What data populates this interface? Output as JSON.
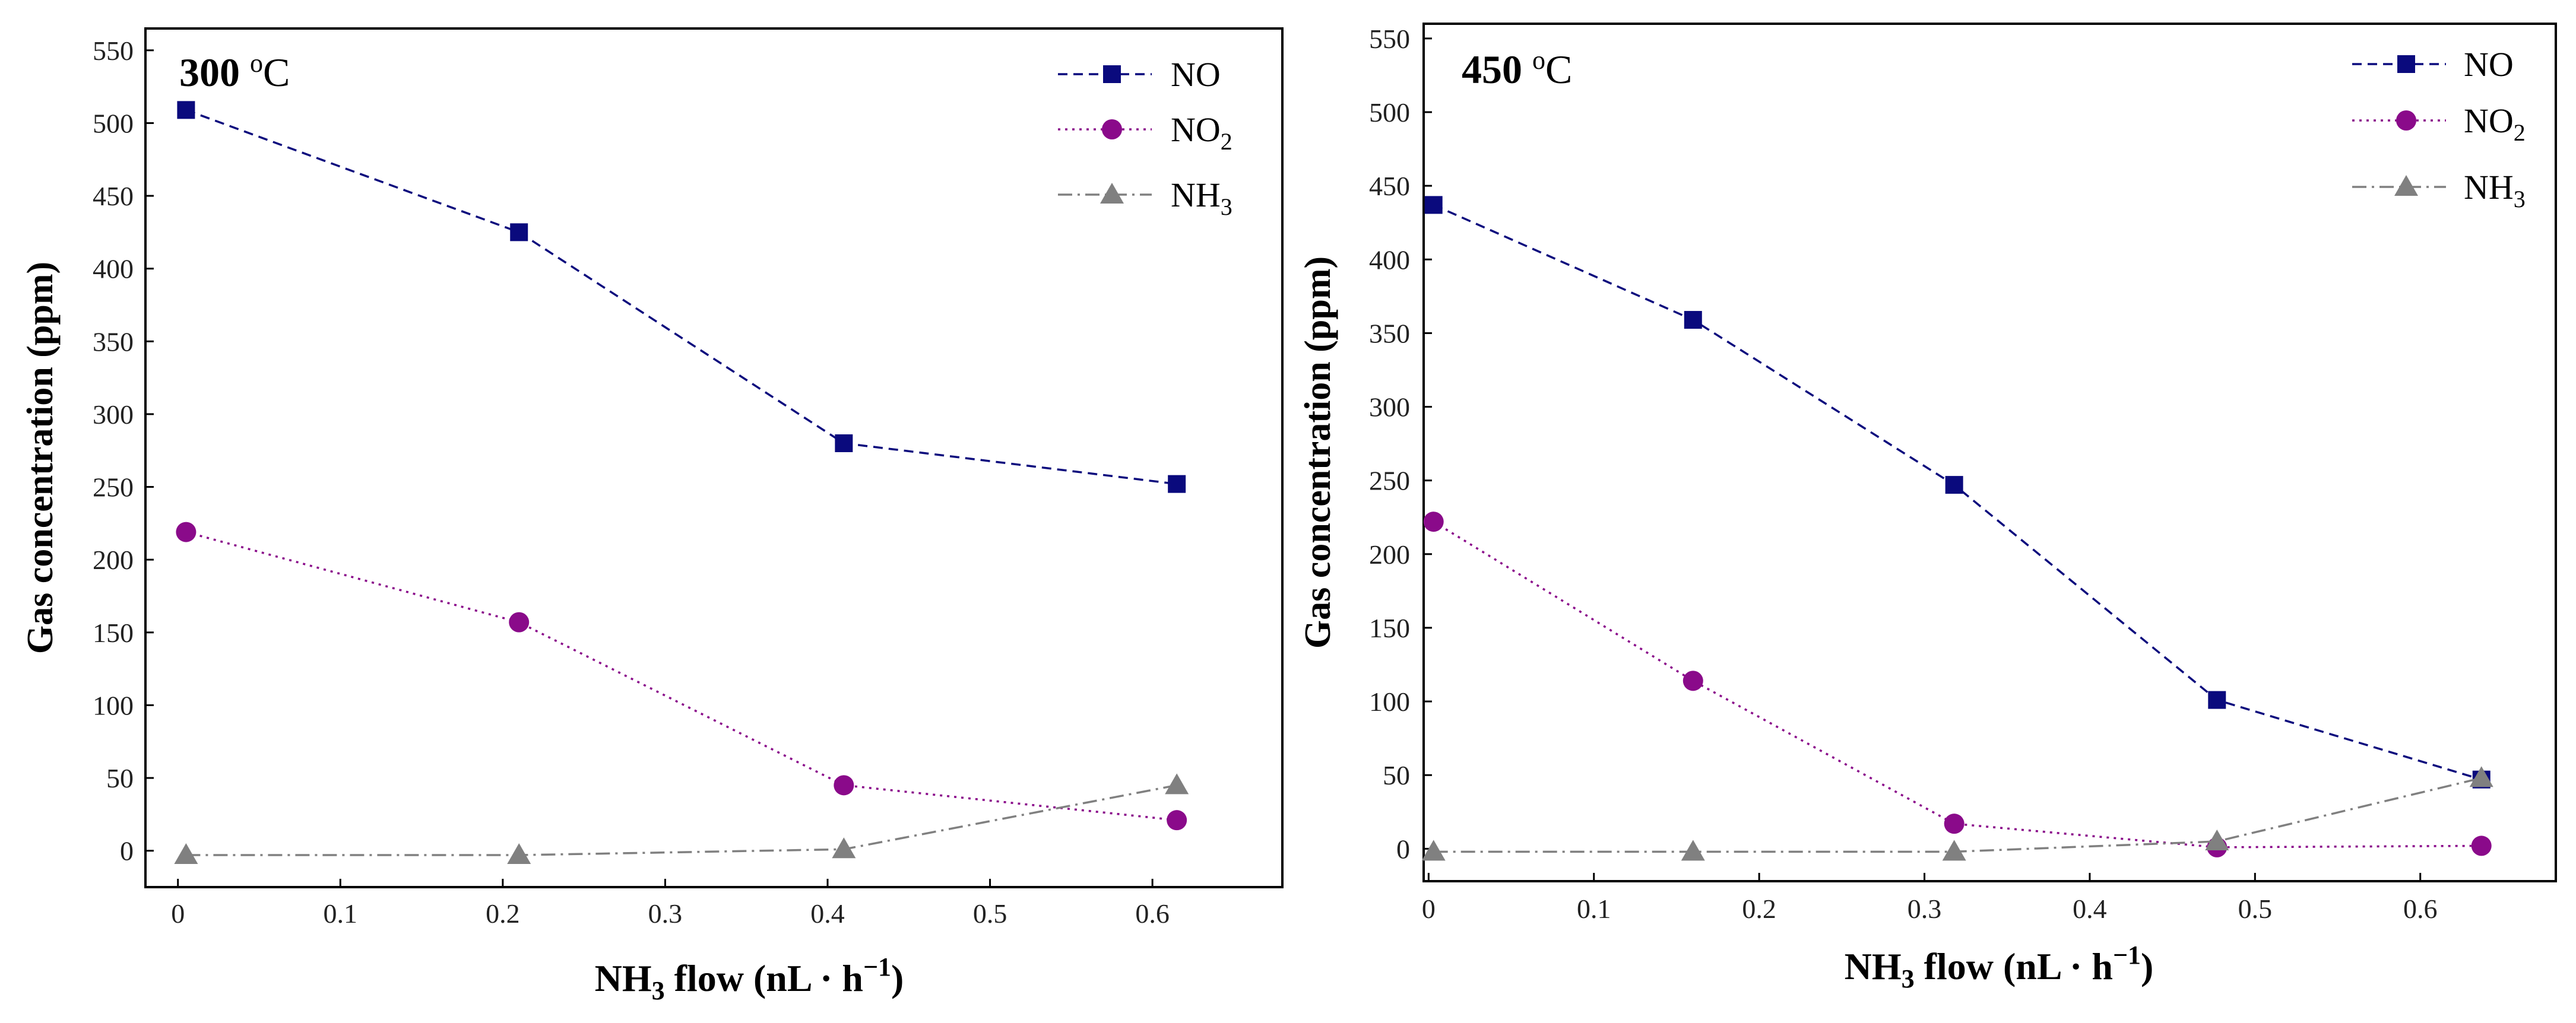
{
  "colors": {
    "NO": "#0a0a7d",
    "NO2": "#8a0a8a",
    "NH3": "#808080",
    "frame": "#000000"
  },
  "chart_data": [
    {
      "type": "line",
      "title": "300 ºC",
      "title_main": "300 ",
      "title_sup": "o",
      "title_unit": "C",
      "xlabel": "NH3 flow (nL · h−1)",
      "xlabel_parts": {
        "a": "NH",
        "a_sub": "3",
        "b": " flow (nL · h",
        "b_sup": "−1",
        "c": ")"
      },
      "ylabel": "Gas concentration (ppm)",
      "xlim": [
        -0.02,
        0.68
      ],
      "ylim": [
        -25,
        565
      ],
      "xticks": [
        0,
        0.1,
        0.2,
        0.3,
        0.4,
        0.5,
        0.6
      ],
      "xtick_labels": [
        "0",
        "0.1",
        "0.2",
        "0.3",
        "0.4",
        "0.5",
        "0.6"
      ],
      "yticks": [
        0,
        50,
        100,
        150,
        200,
        250,
        300,
        350,
        400,
        450,
        500,
        550
      ],
      "ytick_labels": [
        "0",
        "50",
        "100",
        "150",
        "200",
        "250",
        "300",
        "350",
        "400",
        "450",
        "500",
        "550"
      ],
      "legend_position": "top-right",
      "series": [
        {
          "key": "NO",
          "name": "NO",
          "legend_main": "NO",
          "legend_sub": "",
          "marker": "square",
          "dash": "dashed",
          "x": [
            0.005,
            0.21,
            0.41,
            0.615
          ],
          "values": [
            509,
            425,
            280,
            252
          ]
        },
        {
          "key": "NO2",
          "name": "NO2",
          "legend_main": "NO",
          "legend_sub": "2",
          "marker": "circle",
          "dash": "dotted",
          "x": [
            0.005,
            0.21,
            0.41,
            0.615
          ],
          "values": [
            219,
            157,
            45,
            21
          ]
        },
        {
          "key": "NH3",
          "name": "NH3",
          "legend_main": "NH",
          "legend_sub": "3",
          "marker": "triangle",
          "dash": "dashdot",
          "x": [
            0.005,
            0.21,
            0.41,
            0.615
          ],
          "values": [
            -3,
            -3,
            1,
            45
          ]
        }
      ]
    },
    {
      "type": "line",
      "title": "450 ºC",
      "title_main": "450 ",
      "title_sup": "o",
      "title_unit": "C",
      "xlabel": "NH3 flow (nL · h−1)",
      "xlabel_parts": {
        "a": "NH",
        "a_sub": "3",
        "b": " flow (nL · h",
        "b_sup": "−1",
        "c": ")"
      },
      "ylabel": "Gas concentration (ppm)",
      "xlim": [
        -0.003,
        0.682
      ],
      "ylim": [
        -22,
        560
      ],
      "xticks": [
        0,
        0.1,
        0.2,
        0.3,
        0.4,
        0.5,
        0.6
      ],
      "xtick_labels": [
        "0",
        "0.1",
        "0.2",
        "0.3",
        "0.4",
        "0.5",
        "0.6"
      ],
      "yticks": [
        0,
        50,
        100,
        150,
        200,
        250,
        300,
        350,
        400,
        450,
        500,
        550
      ],
      "ytick_labels": [
        "0",
        "50",
        "100",
        "150",
        "200",
        "250",
        "300",
        "350",
        "400",
        "450",
        "500",
        "550"
      ],
      "legend_position": "top-right",
      "series": [
        {
          "key": "NO",
          "name": "NO",
          "legend_main": "NO",
          "legend_sub": "",
          "marker": "square",
          "dash": "dashed",
          "x": [
            0.003,
            0.16,
            0.318,
            0.477,
            0.637
          ],
          "values": [
            437,
            359,
            247,
            101,
            47
          ]
        },
        {
          "key": "NO2",
          "name": "NO2",
          "legend_main": "NO",
          "legend_sub": "2",
          "marker": "circle",
          "dash": "dotted",
          "x": [
            0.003,
            0.16,
            0.318,
            0.477,
            0.637
          ],
          "values": [
            222,
            114,
            17,
            1,
            2
          ]
        },
        {
          "key": "NH3",
          "name": "NH3",
          "legend_main": "NH",
          "legend_sub": "3",
          "marker": "triangle",
          "dash": "dashdot",
          "x": [
            0.003,
            0.16,
            0.318,
            0.477,
            0.637
          ],
          "values": [
            -2,
            -2,
            -2,
            5,
            48
          ]
        }
      ]
    }
  ]
}
